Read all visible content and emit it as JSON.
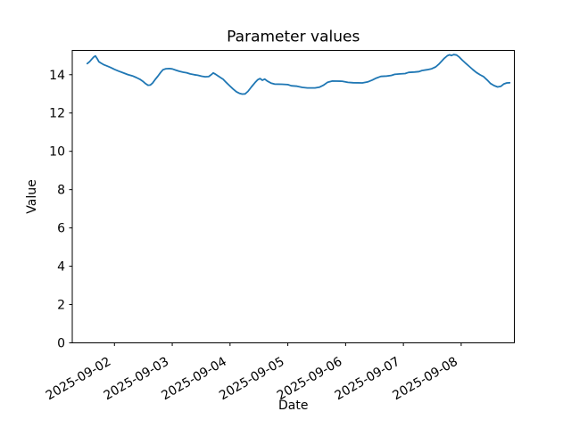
{
  "figure": {
    "background": "#ffffff"
  },
  "chart_data": {
    "type": "line",
    "title": "Parameter values",
    "xlabel": "Date",
    "ylabel": "Value",
    "x_unit": "days since 2025-09-01 00:00",
    "xlim": [
      0.27,
      7.92
    ],
    "ylim": [
      0,
      15.27
    ],
    "grid": false,
    "legend": "none",
    "x_tick_rotation_deg": 30,
    "x_ticks": [
      {
        "t": 1,
        "label": "2025-09-02"
      },
      {
        "t": 2,
        "label": "2025-09-03"
      },
      {
        "t": 3,
        "label": "2025-09-04"
      },
      {
        "t": 4,
        "label": "2025-09-05"
      },
      {
        "t": 5,
        "label": "2025-09-06"
      },
      {
        "t": 6,
        "label": "2025-09-07"
      },
      {
        "t": 7,
        "label": "2025-09-08"
      }
    ],
    "y_ticks": [
      0,
      2,
      4,
      6,
      8,
      10,
      12,
      14
    ],
    "series": [
      {
        "name": "parameter-values",
        "color": "#1f77b4",
        "points": [
          [
            0.53,
            14.58
          ],
          [
            0.57,
            14.68
          ],
          [
            0.61,
            14.82
          ],
          [
            0.64,
            14.92
          ],
          [
            0.67,
            14.98
          ],
          [
            0.7,
            14.84
          ],
          [
            0.73,
            14.68
          ],
          [
            0.77,
            14.6
          ],
          [
            0.81,
            14.53
          ],
          [
            0.86,
            14.47
          ],
          [
            0.93,
            14.38
          ],
          [
            1.0,
            14.28
          ],
          [
            1.07,
            14.19
          ],
          [
            1.15,
            14.1
          ],
          [
            1.23,
            14.01
          ],
          [
            1.31,
            13.94
          ],
          [
            1.38,
            13.85
          ],
          [
            1.44,
            13.76
          ],
          [
            1.49,
            13.66
          ],
          [
            1.54,
            13.53
          ],
          [
            1.58,
            13.45
          ],
          [
            1.62,
            13.46
          ],
          [
            1.66,
            13.56
          ],
          [
            1.7,
            13.73
          ],
          [
            1.75,
            13.92
          ],
          [
            1.8,
            14.12
          ],
          [
            1.84,
            14.26
          ],
          [
            1.89,
            14.31
          ],
          [
            1.95,
            14.32
          ],
          [
            2.0,
            14.3
          ],
          [
            2.06,
            14.24
          ],
          [
            2.12,
            14.18
          ],
          [
            2.19,
            14.13
          ],
          [
            2.25,
            14.1
          ],
          [
            2.31,
            14.04
          ],
          [
            2.38,
            14.0
          ],
          [
            2.44,
            13.97
          ],
          [
            2.51,
            13.92
          ],
          [
            2.57,
            13.89
          ],
          [
            2.63,
            13.9
          ],
          [
            2.67,
            13.99
          ],
          [
            2.71,
            14.09
          ],
          [
            2.74,
            14.04
          ],
          [
            2.78,
            13.96
          ],
          [
            2.83,
            13.86
          ],
          [
            2.88,
            13.76
          ],
          [
            2.93,
            13.61
          ],
          [
            2.99,
            13.43
          ],
          [
            3.05,
            13.26
          ],
          [
            3.11,
            13.11
          ],
          [
            3.16,
            13.03
          ],
          [
            3.21,
            12.99
          ],
          [
            3.26,
            13.0
          ],
          [
            3.31,
            13.13
          ],
          [
            3.37,
            13.36
          ],
          [
            3.43,
            13.58
          ],
          [
            3.48,
            13.74
          ],
          [
            3.52,
            13.8
          ],
          [
            3.56,
            13.71
          ],
          [
            3.6,
            13.77
          ],
          [
            3.65,
            13.66
          ],
          [
            3.71,
            13.56
          ],
          [
            3.77,
            13.51
          ],
          [
            3.9,
            13.5
          ],
          [
            4.0,
            13.48
          ],
          [
            4.06,
            13.42
          ],
          [
            4.16,
            13.4
          ],
          [
            4.25,
            13.34
          ],
          [
            4.34,
            13.31
          ],
          [
            4.47,
            13.31
          ],
          [
            4.55,
            13.35
          ],
          [
            4.62,
            13.46
          ],
          [
            4.69,
            13.61
          ],
          [
            4.77,
            13.67
          ],
          [
            4.94,
            13.66
          ],
          [
            5.04,
            13.6
          ],
          [
            5.13,
            13.58
          ],
          [
            5.29,
            13.57
          ],
          [
            5.38,
            13.62
          ],
          [
            5.46,
            13.72
          ],
          [
            5.53,
            13.82
          ],
          [
            5.61,
            13.91
          ],
          [
            5.71,
            13.93
          ],
          [
            5.79,
            13.96
          ],
          [
            5.85,
            14.02
          ],
          [
            5.94,
            14.04
          ],
          [
            6.03,
            14.06
          ],
          [
            6.09,
            14.12
          ],
          [
            6.19,
            14.14
          ],
          [
            6.27,
            14.16
          ],
          [
            6.32,
            14.22
          ],
          [
            6.41,
            14.26
          ],
          [
            6.49,
            14.31
          ],
          [
            6.56,
            14.41
          ],
          [
            6.61,
            14.54
          ],
          [
            6.66,
            14.7
          ],
          [
            6.71,
            14.86
          ],
          [
            6.76,
            14.99
          ],
          [
            6.8,
            15.04
          ],
          [
            6.83,
            15.0
          ],
          [
            6.87,
            15.05
          ],
          [
            6.92,
            15.03
          ],
          [
            6.97,
            14.91
          ],
          [
            7.02,
            14.76
          ],
          [
            7.08,
            14.59
          ],
          [
            7.14,
            14.43
          ],
          [
            7.2,
            14.27
          ],
          [
            7.26,
            14.12
          ],
          [
            7.33,
            13.99
          ],
          [
            7.39,
            13.89
          ],
          [
            7.45,
            13.72
          ],
          [
            7.51,
            13.54
          ],
          [
            7.57,
            13.43
          ],
          [
            7.63,
            13.36
          ],
          [
            7.69,
            13.4
          ],
          [
            7.74,
            13.52
          ],
          [
            7.79,
            13.57
          ],
          [
            7.84,
            13.58
          ]
        ]
      }
    ]
  }
}
